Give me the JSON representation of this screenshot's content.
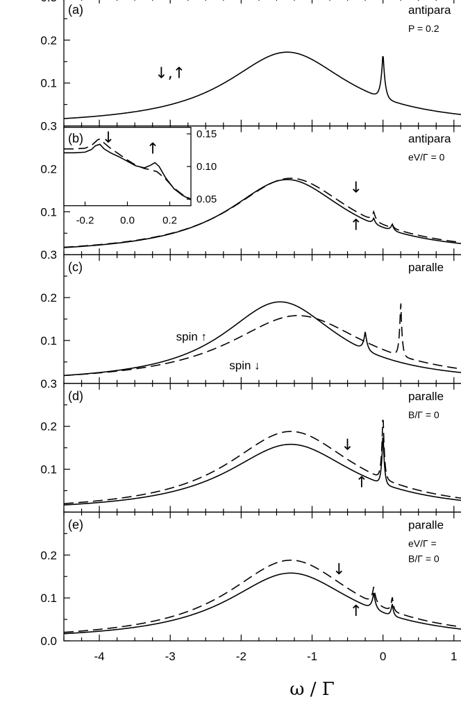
{
  "chart_data": {
    "type": "line",
    "xlabel": "ω / Γ",
    "xlim": [
      -4.5,
      1.1
    ],
    "x_ticks": [
      "-4",
      "-3",
      "-2",
      "-1",
      "0",
      "1"
    ],
    "y_tick_labels": {
      "top_panels": [
        "0.3",
        "0.2",
        "0.1"
      ],
      "bottom_panel": [
        "0.2",
        "0.1",
        "0.0"
      ]
    },
    "panels": [
      {
        "letter": "(a)",
        "config": "antipara",
        "param": "P = 0.2",
        "ylim": [
          0.0,
          0.3
        ],
        "arrow_labels": [
          {
            "text": "↓,↑",
            "x": -3.0,
            "y": 0.112
          }
        ],
        "series": [
          {
            "name": "↓,↑",
            "style": "solid",
            "lorentz": {
              "x0": -1.35,
              "w": 1.05,
              "h": 0.172
            },
            "peaks": [
              {
                "x0": 0.0,
                "h": 0.11,
                "w": 0.03
              }
            ]
          }
        ]
      },
      {
        "letter": "(b)",
        "config": "antipara",
        "param": "eV/Γ = 0",
        "ylim": [
          0.0,
          0.3
        ],
        "arrow_labels": [
          {
            "text": "↓",
            "x": -0.38,
            "y": 0.145
          },
          {
            "text": "↑",
            "x": -0.38,
            "y": 0.058
          }
        ],
        "series": [
          {
            "name": "↓",
            "style": "dash",
            "lorentz": {
              "x0": -1.3,
              "w": 1.05,
              "h": 0.178
            },
            "peaks": [
              {
                "x0": -0.13,
                "h": 0.022,
                "w": 0.03
              },
              {
                "x0": 0.13,
                "h": 0.01,
                "w": 0.02
              }
            ]
          },
          {
            "name": "↑",
            "style": "solid",
            "lorentz": {
              "x0": -1.35,
              "w": 1.02,
              "h": 0.175
            },
            "peaks": [
              {
                "x0": -0.13,
                "h": 0.014,
                "w": 0.025
              },
              {
                "x0": 0.13,
                "h": 0.016,
                "w": 0.025
              }
            ]
          }
        ],
        "inset": {
          "xlim": [
            -0.3,
            0.3
          ],
          "ylim": [
            0.04,
            0.16
          ],
          "x_ticks": [
            "-0.2",
            "0.0",
            "0.2"
          ],
          "y_ticks": [
            "0.15",
            "0.10",
            "0.05"
          ],
          "arrow_labels": [
            {
              "text": "↓",
              "x": -0.09,
              "y": 0.137
            },
            {
              "text": "↑",
              "x": 0.12,
              "y": 0.12
            }
          ],
          "series": [
            {
              "name": "↓",
              "style": "dash",
              "points": [
                [
                  -0.3,
                  0.127
                ],
                [
                  -0.25,
                  0.127
                ],
                [
                  -0.2,
                  0.128
                ],
                [
                  -0.17,
                  0.132
                ],
                [
                  -0.14,
                  0.141
                ],
                [
                  -0.13,
                  0.142
                ],
                [
                  -0.11,
                  0.136
                ],
                [
                  -0.08,
                  0.128
                ],
                [
                  -0.04,
                  0.119
                ],
                [
                  0.0,
                  0.11
                ],
                [
                  0.04,
                  0.102
                ],
                [
                  0.08,
                  0.097
                ],
                [
                  0.11,
                  0.095
                ],
                [
                  0.14,
                  0.092
                ],
                [
                  0.18,
                  0.081
                ],
                [
                  0.22,
                  0.067
                ],
                [
                  0.26,
                  0.057
                ],
                [
                  0.3,
                  0.05
                ]
              ]
            },
            {
              "name": "↑",
              "style": "solid",
              "points": [
                [
                  -0.3,
                  0.121
                ],
                [
                  -0.25,
                  0.121
                ],
                [
                  -0.2,
                  0.122
                ],
                [
                  -0.17,
                  0.126
                ],
                [
                  -0.15,
                  0.132
                ],
                [
                  -0.13,
                  0.134
                ],
                [
                  -0.11,
                  0.127
                ],
                [
                  -0.08,
                  0.121
                ],
                [
                  -0.04,
                  0.115
                ],
                [
                  0.0,
                  0.108
                ],
                [
                  0.04,
                  0.101
                ],
                [
                  0.08,
                  0.098
                ],
                [
                  0.11,
                  0.102
                ],
                [
                  0.13,
                  0.106
                ],
                [
                  0.15,
                  0.1
                ],
                [
                  0.18,
                  0.083
                ],
                [
                  0.22,
                  0.066
                ],
                [
                  0.26,
                  0.056
                ],
                [
                  0.3,
                  0.049
                ]
              ]
            }
          ]
        }
      },
      {
        "letter": "(c)",
        "config": "paralle",
        "param": "",
        "ylim": [
          0.0,
          0.3
        ],
        "arrow_labels": [
          {
            "text": "spin ↑",
            "x": -2.7,
            "y": 0.1
          },
          {
            "text": "spin ↓",
            "x": -1.95,
            "y": 0.033
          }
        ],
        "series": [
          {
            "name": "spin ↑",
            "style": "solid",
            "lorentz": {
              "x0": -1.45,
              "w": 1.0,
              "h": 0.19
            },
            "peaks": [
              {
                "x0": -0.25,
                "h": 0.045,
                "w": 0.03
              }
            ]
          },
          {
            "name": "spin ↓",
            "style": "dash",
            "lorentz": {
              "x0": -1.2,
              "w": 1.2,
              "h": 0.158
            },
            "peaks": [
              {
                "x0": 0.25,
                "h": 0.135,
                "w": 0.02
              }
            ]
          }
        ]
      },
      {
        "letter": "(d)",
        "config": "paralle",
        "param": "B/Γ = 0",
        "ylim": [
          0.0,
          0.3
        ],
        "arrow_labels": [
          {
            "text": "↓",
            "x": -0.5,
            "y": 0.145
          },
          {
            "text": "↑",
            "x": -0.3,
            "y": 0.058
          }
        ],
        "series": [
          {
            "name": "↓",
            "style": "dash",
            "lorentz": {
              "x0": -1.3,
              "w": 1.1,
              "h": 0.188
            },
            "peaks": [
              {
                "x0": 0.0,
                "h": 0.165,
                "w": 0.02
              }
            ]
          },
          {
            "name": "↑",
            "style": "solid",
            "lorentz": {
              "x0": -1.3,
              "w": 1.1,
              "h": 0.158
            },
            "peaks": [
              {
                "x0": 0.0,
                "h": 0.13,
                "w": 0.02
              }
            ]
          }
        ]
      },
      {
        "letter": "(e)",
        "config": "paralle",
        "param": "eV/Γ =",
        "param2": "B/Γ = 0",
        "ylim": [
          0.0,
          0.3
        ],
        "arrow_labels": [
          {
            "text": "↓",
            "x": -0.62,
            "y": 0.155
          },
          {
            "text": "↑",
            "x": -0.38,
            "y": 0.058
          }
        ],
        "series": [
          {
            "name": "↓",
            "style": "dash",
            "lorentz": {
              "x0": -1.3,
              "w": 1.1,
              "h": 0.188
            },
            "peaks": [
              {
                "x0": -0.13,
                "h": 0.04,
                "w": 0.03
              },
              {
                "x0": 0.13,
                "h": 0.035,
                "w": 0.02
              }
            ]
          },
          {
            "name": "↑",
            "style": "solid",
            "lorentz": {
              "x0": -1.3,
              "w": 1.1,
              "h": 0.158
            },
            "peaks": [
              {
                "x0": -0.13,
                "h": 0.04,
                "w": 0.03
              },
              {
                "x0": 0.13,
                "h": 0.03,
                "w": 0.02
              }
            ]
          }
        ]
      }
    ]
  }
}
